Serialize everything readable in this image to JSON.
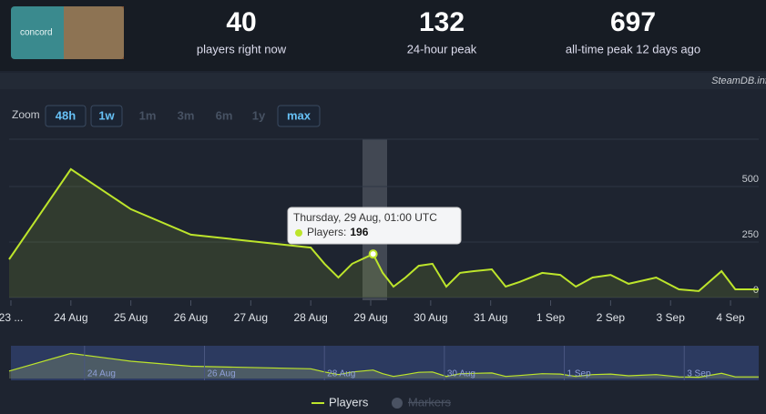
{
  "header": {
    "logo": "concord",
    "stats": [
      {
        "value": 40,
        "label": "players right now"
      },
      {
        "value": 132,
        "label": "24-hour peak"
      },
      {
        "value": 697,
        "label": "all-time peak 12 days ago"
      }
    ],
    "credit": "SteamDB.info"
  },
  "zoom": {
    "label": "Zoom",
    "buttons": [
      "48h",
      "1w",
      "1m",
      "3m",
      "6m",
      "1y",
      "max"
    ],
    "enabled": [
      true,
      true,
      false,
      false,
      false,
      false,
      true
    ]
  },
  "chart_data": {
    "type": "line",
    "color": "#bde52b",
    "grid": true,
    "series": [
      {
        "name": "Players",
        "color": "#bde52b",
        "x": [
          22.97,
          24.0,
          25.0,
          26.0,
          28.0,
          28.23,
          28.46,
          28.69,
          29.04,
          29.2,
          29.38,
          29.58,
          29.8,
          30.03,
          30.26,
          30.49,
          30.72,
          31.02,
          31.25,
          31.48,
          31.86,
          32.16,
          32.42,
          32.7,
          33.0,
          33.3,
          33.76,
          34.14,
          34.47,
          34.85,
          35.08,
          35.47
        ],
        "values": [
          172,
          578,
          398,
          283,
          225,
          152,
          90,
          152,
          196,
          111,
          49,
          90,
          143,
          152,
          49,
          111,
          119,
          127,
          49,
          70,
          111,
          102,
          49,
          90,
          102,
          62,
          90,
          37,
          29,
          119,
          37,
          37
        ]
      }
    ],
    "legend_extra": "Markers",
    "xlim": [
      22.97,
      35.47
    ],
    "xticks": [
      {
        "value": 23,
        "label": "23 ..."
      },
      {
        "value": 24,
        "label": "24 Aug"
      },
      {
        "value": 25,
        "label": "25 Aug"
      },
      {
        "value": 26,
        "label": "26 Aug"
      },
      {
        "value": 27,
        "label": "27 Aug"
      },
      {
        "value": 28,
        "label": "28 Aug"
      },
      {
        "value": 29,
        "label": "29 Aug"
      },
      {
        "value": 30,
        "label": "30 Aug"
      },
      {
        "value": 31,
        "label": "31 Aug"
      },
      {
        "value": 32,
        "label": "1 Sep"
      },
      {
        "value": 33,
        "label": "2 Sep"
      },
      {
        "value": 34,
        "label": "3 Sep"
      },
      {
        "value": 35,
        "label": "4 Sep"
      }
    ],
    "ylim": [
      0,
      713
    ],
    "yticks": [
      0,
      250,
      500
    ],
    "tooltip": {
      "index": 8,
      "date": "Thursday, 29 Aug, 01:00 UTC",
      "label": "Players:",
      "value": 196
    },
    "navigator_ticks": [
      {
        "value": 24,
        "label": "24 Aug"
      },
      {
        "value": 26,
        "label": "26 Aug"
      },
      {
        "value": 28,
        "label": "28 Aug"
      },
      {
        "value": 30,
        "label": "30 Aug"
      },
      {
        "value": 32,
        "label": "1 Sep"
      },
      {
        "value": 34,
        "label": "3 Sep"
      }
    ]
  }
}
